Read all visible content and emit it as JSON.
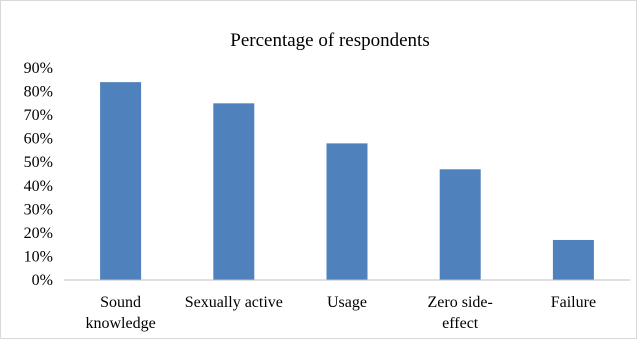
{
  "chart_data": {
    "type": "bar",
    "title": "Percentage  of respondents",
    "categories": [
      [
        "Sound",
        "knowledge"
      ],
      [
        "Sexually active"
      ],
      [
        "Usage"
      ],
      [
        "Zero side-",
        "effect"
      ],
      [
        "Failure"
      ]
    ],
    "values": [
      84,
      75,
      58,
      47,
      17
    ],
    "ylim": [
      0,
      90
    ],
    "yticks": [
      0,
      10,
      20,
      30,
      40,
      50,
      60,
      70,
      80,
      90
    ],
    "ytick_labels": [
      "0%",
      "10%",
      "20%",
      "30%",
      "40%",
      "50%",
      "60%",
      "70%",
      "80%",
      "90%"
    ],
    "xlabel": "",
    "ylabel": "",
    "grid": false,
    "legend": "none",
    "bar_color": "#4f81bd",
    "axis_color": "#bfbfbf"
  }
}
